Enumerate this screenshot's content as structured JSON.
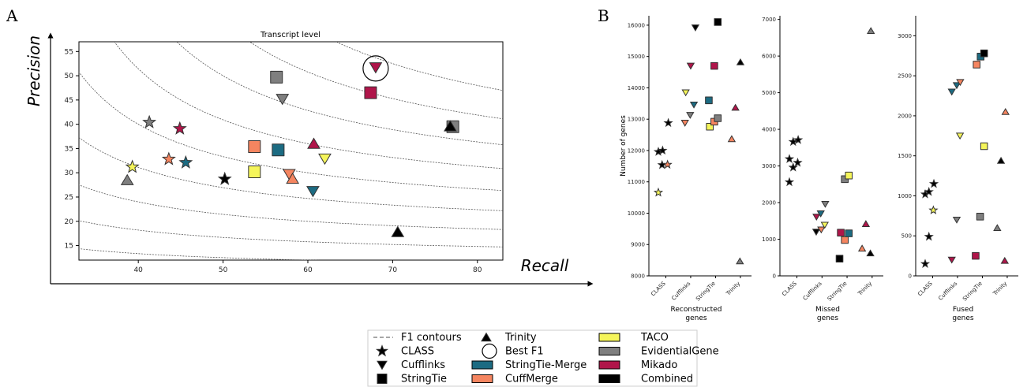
{
  "panels": {
    "a": "A",
    "b": "B"
  },
  "colors": {
    "CLASS": "#000000",
    "TACO": "#f5f55a",
    "EvidentialGene": "#7f7f7f",
    "StringTie-Merge": "#1c6b82",
    "CuffMerge": "#f58560",
    "Mikado": "#b0154a",
    "Combined": "#000000",
    "StringTie": "#000000"
  },
  "legend": {
    "items": [
      {
        "label": "F1 contours",
        "symbol": "dash",
        "color": "#888888"
      },
      {
        "label": "CLASS",
        "symbol": "star",
        "color": "#000000"
      },
      {
        "label": "Cufflinks",
        "symbol": "tri-down",
        "color": "#000000"
      },
      {
        "label": "StringTie",
        "symbol": "square",
        "color": "#000000"
      },
      {
        "label": "Trinity",
        "symbol": "tri-up",
        "color": "#000000"
      },
      {
        "label": "Best F1",
        "symbol": "circle",
        "color": "#000000"
      },
      {
        "label": "StringTie-Merge",
        "symbol": "rect",
        "color": "#1c6b82"
      },
      {
        "label": "CuffMerge",
        "symbol": "rect",
        "color": "#f58560"
      },
      {
        "label": "TACO",
        "symbol": "rect",
        "color": "#f5f55a"
      },
      {
        "label": "EvidentialGene",
        "symbol": "rect",
        "color": "#7f7f7f"
      },
      {
        "label": "Mikado",
        "symbol": "rect",
        "color": "#b0154a"
      },
      {
        "label": "Combined",
        "symbol": "rect",
        "color": "#000000"
      }
    ]
  },
  "chart_data": [
    {
      "type": "scatter",
      "title": "Transcript level",
      "xlabel": "Recall",
      "ylabel": "Precision",
      "xlim": [
        33,
        83
      ],
      "ylim": [
        12,
        57
      ],
      "xticks": [
        40,
        50,
        60,
        70,
        80
      ],
      "yticks": [
        15,
        20,
        25,
        30,
        35,
        40,
        45,
        50,
        55
      ],
      "f1_contours": [
        0.14,
        0.2,
        0.25,
        0.3,
        0.35,
        0.4,
        0.45,
        0.5,
        0.55,
        0.6
      ],
      "best_f1": {
        "x": 68,
        "y": 51.5
      },
      "points": [
        {
          "method": "Trinity",
          "color": "EvidentialGene",
          "x": 38.7,
          "y": 28.5
        },
        {
          "method": "CLASS",
          "color": "TACO",
          "x": 39.3,
          "y": 31.2
        },
        {
          "method": "CLASS",
          "color": "EvidentialGene",
          "x": 41.3,
          "y": 40.4
        },
        {
          "method": "CLASS",
          "color": "CuffMerge",
          "x": 43.6,
          "y": 32.8
        },
        {
          "method": "CLASS",
          "color": "Mikado",
          "x": 44.9,
          "y": 39.1
        },
        {
          "method": "CLASS",
          "color": "StringTie-Merge",
          "x": 45.6,
          "y": 32.1
        },
        {
          "method": "CLASS",
          "color": "Combined",
          "x": 50.2,
          "y": 28.7
        },
        {
          "method": "StringTie",
          "color": "TACO",
          "x": 53.7,
          "y": 30.2
        },
        {
          "method": "StringTie",
          "color": "CuffMerge",
          "x": 53.7,
          "y": 35.4
        },
        {
          "method": "StringTie",
          "color": "EvidentialGene",
          "x": 56.3,
          "y": 49.7
        },
        {
          "method": "StringTie",
          "color": "StringTie-Merge",
          "x": 56.5,
          "y": 34.7
        },
        {
          "method": "Cufflinks",
          "color": "EvidentialGene",
          "x": 57,
          "y": 45.2
        },
        {
          "method": "Cufflinks",
          "color": "CuffMerge",
          "x": 57.8,
          "y": 29.7
        },
        {
          "method": "Trinity",
          "color": "CuffMerge",
          "x": 58.2,
          "y": 28.8
        },
        {
          "method": "Trinity",
          "color": "Mikado",
          "x": 60.7,
          "y": 36
        },
        {
          "method": "Cufflinks",
          "color": "StringTie-Merge",
          "x": 60.6,
          "y": 26.2
        },
        {
          "method": "Cufflinks",
          "color": "TACO",
          "x": 62,
          "y": 32.9
        },
        {
          "method": "StringTie",
          "color": "Mikado",
          "x": 67.4,
          "y": 46.5
        },
        {
          "method": "Cufflinks",
          "color": "Mikado",
          "x": 68,
          "y": 51.7
        },
        {
          "method": "Trinity",
          "color": "Combined",
          "x": 70.6,
          "y": 17.8
        },
        {
          "method": "StringTie",
          "color": "EvidentialGene",
          "x": 77.1,
          "y": 39.5
        },
        {
          "method": "Trinity",
          "color": "Combined",
          "x": 76.8,
          "y": 39.6
        }
      ]
    },
    {
      "type": "scatter",
      "xlabel": "Reconstructed genes",
      "ylabel": "Number of genes",
      "ylim": [
        8000,
        16300
      ],
      "yticks": [
        8000,
        9000,
        10000,
        11000,
        12000,
        13000,
        14000,
        15000,
        16000
      ],
      "categories": [
        "CLASS",
        "Cufflinks",
        "StringTie",
        "Trinity"
      ],
      "points": [
        {
          "method": "CLASS",
          "color": "TACO",
          "x": -0.35,
          "y": 10660
        },
        {
          "method": "CLASS",
          "color": "Combined",
          "x": -0.35,
          "y": 11960
        },
        {
          "method": "CLASS",
          "color": "Combined",
          "x": -0.18,
          "y": 12000
        },
        {
          "method": "CLASS",
          "color": "Combined",
          "x": -0.2,
          "y": 11540
        },
        {
          "method": "CLASS",
          "color": "CuffMerge",
          "x": 0.02,
          "y": 11550
        },
        {
          "method": "CLASS",
          "color": "Combined",
          "x": 0.05,
          "y": 12880
        },
        {
          "method": "Cufflinks",
          "color": "TACO",
          "x": 0.75,
          "y": 13850
        },
        {
          "method": "Cufflinks",
          "color": "CuffMerge",
          "x": 0.72,
          "y": 12880
        },
        {
          "method": "Cufflinks",
          "color": "EvidentialGene",
          "x": 0.93,
          "y": 13130
        },
        {
          "method": "Cufflinks",
          "color": "Mikado",
          "x": 0.95,
          "y": 14700
        },
        {
          "method": "Cufflinks",
          "color": "StringTie-Merge",
          "x": 1.08,
          "y": 13460
        },
        {
          "method": "Cufflinks",
          "color": "Combined",
          "x": 1.14,
          "y": 15920
        },
        {
          "method": "StringTie",
          "color": "StringTie-Merge",
          "x": 1.68,
          "y": 13600
        },
        {
          "method": "StringTie",
          "color": "TACO",
          "x": 1.72,
          "y": 12760
        },
        {
          "method": "StringTie",
          "color": "CuffMerge",
          "x": 1.9,
          "y": 12920
        },
        {
          "method": "StringTie",
          "color": "Mikado",
          "x": 1.9,
          "y": 14700
        },
        {
          "method": "StringTie",
          "color": "EvidentialGene",
          "x": 2.04,
          "y": 13030
        },
        {
          "method": "StringTie",
          "color": "Combined",
          "x": 2.04,
          "y": 16100
        },
        {
          "method": "Trinity",
          "color": "CuffMerge",
          "x": 2.6,
          "y": 12370
        },
        {
          "method": "Trinity",
          "color": "Mikado",
          "x": 2.75,
          "y": 13370
        },
        {
          "method": "Trinity",
          "color": "Combined",
          "x": 2.95,
          "y": 14820
        },
        {
          "method": "Trinity",
          "color": "EvidentialGene",
          "x": 2.93,
          "y": 8470
        }
      ]
    },
    {
      "type": "scatter",
      "xlabel": "Missed genes",
      "ylim": [
        0,
        7100
      ],
      "yticks": [
        0,
        1000,
        2000,
        3000,
        4000,
        5000,
        6000,
        7000
      ],
      "categories": [
        "CLASS",
        "Cufflinks",
        "StringTie",
        "Trinity"
      ],
      "points": [
        {
          "method": "CLASS",
          "color": "Combined",
          "x": -0.35,
          "y": 2560
        },
        {
          "method": "CLASS",
          "color": "Combined",
          "x": -0.35,
          "y": 3190
        },
        {
          "method": "CLASS",
          "color": "Combined",
          "x": -0.2,
          "y": 2960
        },
        {
          "method": "CLASS",
          "color": "Combined",
          "x": -0.2,
          "y": 3660
        },
        {
          "method": "CLASS",
          "color": "Combined",
          "x": -0.02,
          "y": 3090
        },
        {
          "method": "CLASS",
          "color": "Combined",
          "x": 0.0,
          "y": 3710
        },
        {
          "method": "Cufflinks",
          "color": "Combined",
          "x": 0.72,
          "y": 1200
        },
        {
          "method": "Cufflinks",
          "color": "Mikado",
          "x": 0.73,
          "y": 1610
        },
        {
          "method": "Cufflinks",
          "color": "CuffMerge",
          "x": 0.92,
          "y": 1260
        },
        {
          "method": "Cufflinks",
          "color": "StringTie-Merge",
          "x": 0.9,
          "y": 1700
        },
        {
          "method": "Cufflinks",
          "color": "TACO",
          "x": 1.06,
          "y": 1390
        },
        {
          "method": "Cufflinks",
          "color": "EvidentialGene",
          "x": 1.08,
          "y": 1960
        },
        {
          "method": "StringTie",
          "color": "Combined",
          "x": 1.65,
          "y": 470
        },
        {
          "method": "StringTie",
          "color": "Mikado",
          "x": 1.7,
          "y": 1180
        },
        {
          "method": "StringTie",
          "color": "CuffMerge",
          "x": 1.86,
          "y": 980
        },
        {
          "method": "StringTie",
          "color": "EvidentialGene",
          "x": 1.86,
          "y": 2640
        },
        {
          "method": "StringTie",
          "color": "StringTie-Merge",
          "x": 2.02,
          "y": 1160
        },
        {
          "method": "StringTie",
          "color": "TACO",
          "x": 2.02,
          "y": 2740
        },
        {
          "method": "Trinity",
          "color": "CuffMerge",
          "x": 2.55,
          "y": 750
        },
        {
          "method": "Trinity",
          "color": "Mikado",
          "x": 2.7,
          "y": 1420
        },
        {
          "method": "Trinity",
          "color": "Combined",
          "x": 2.88,
          "y": 620
        },
        {
          "method": "Trinity",
          "color": "EvidentialGene",
          "x": 2.9,
          "y": 6690
        }
      ]
    },
    {
      "type": "scatter",
      "xlabel": "Fused genes",
      "ylim": [
        0,
        3250
      ],
      "yticks": [
        0,
        500,
        1000,
        1500,
        2000,
        2500,
        3000
      ],
      "categories": [
        "CLASS",
        "Cufflinks",
        "StringTie",
        "Trinity"
      ],
      "points": [
        {
          "method": "CLASS",
          "color": "Combined",
          "x": -0.35,
          "y": 150
        },
        {
          "method": "CLASS",
          "color": "Combined",
          "x": -0.35,
          "y": 1020
        },
        {
          "method": "CLASS",
          "color": "Combined",
          "x": -0.2,
          "y": 490
        },
        {
          "method": "CLASS",
          "color": "Combined",
          "x": -0.2,
          "y": 1050
        },
        {
          "method": "CLASS",
          "color": "TACO",
          "x": -0.02,
          "y": 820
        },
        {
          "method": "CLASS",
          "color": "Combined",
          "x": 0.0,
          "y": 1150
        },
        {
          "method": "Cufflinks",
          "color": "Mikado",
          "x": 0.72,
          "y": 200
        },
        {
          "method": "Cufflinks",
          "color": "StringTie-Merge",
          "x": 0.72,
          "y": 2300
        },
        {
          "method": "Cufflinks",
          "color": "EvidentialGene",
          "x": 0.92,
          "y": 700
        },
        {
          "method": "Cufflinks",
          "color": "StringTie-Merge",
          "x": 0.92,
          "y": 2380
        },
        {
          "method": "Cufflinks",
          "color": "TACO",
          "x": 1.05,
          "y": 1750
        },
        {
          "method": "Cufflinks",
          "color": "CuffMerge",
          "x": 1.06,
          "y": 2420
        },
        {
          "method": "StringTie",
          "color": "Mikado",
          "x": 1.68,
          "y": 250
        },
        {
          "method": "StringTie",
          "color": "CuffMerge",
          "x": 1.72,
          "y": 2640
        },
        {
          "method": "StringTie",
          "color": "EvidentialGene",
          "x": 1.86,
          "y": 740
        },
        {
          "method": "StringTie",
          "color": "StringTie-Merge",
          "x": 1.88,
          "y": 2740
        },
        {
          "method": "StringTie",
          "color": "TACO",
          "x": 2.02,
          "y": 1620
        },
        {
          "method": "StringTie",
          "color": "Combined",
          "x": 2.02,
          "y": 2780
        },
        {
          "method": "Trinity",
          "color": "EvidentialGene",
          "x": 2.55,
          "y": 600
        },
        {
          "method": "Trinity",
          "color": "Combined",
          "x": 2.7,
          "y": 1440
        },
        {
          "method": "Trinity",
          "color": "Mikado",
          "x": 2.85,
          "y": 190
        },
        {
          "method": "Trinity",
          "color": "CuffMerge",
          "x": 2.88,
          "y": 2050
        }
      ]
    }
  ]
}
